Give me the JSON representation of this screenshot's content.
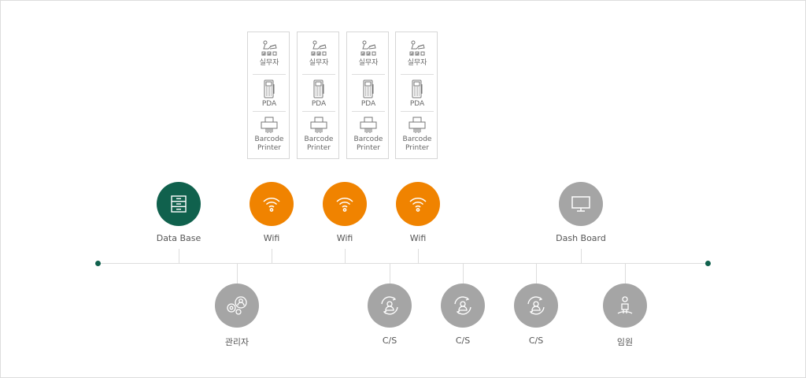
{
  "colors": {
    "green": "#10614d",
    "orange": "#f08300",
    "gray": "#a5a5a5",
    "line": "#dddddd"
  },
  "devices": {
    "worker": "실무자",
    "pda": "PDA",
    "printer_1": "Barcode",
    "printer_2": "Printer"
  },
  "top_nodes": [
    {
      "label": "Data Base",
      "icon": "server-icon",
      "color": "green"
    },
    {
      "label": "Wifi",
      "icon": "wifi-icon",
      "color": "orange"
    },
    {
      "label": "Wifi",
      "icon": "wifi-icon",
      "color": "orange"
    },
    {
      "label": "Wifi",
      "icon": "wifi-icon",
      "color": "orange"
    },
    {
      "label": "Dash Board",
      "icon": "monitor-icon",
      "color": "gray"
    }
  ],
  "bottom_nodes": [
    {
      "label": "관리자",
      "icon": "admin-gear-icon",
      "color": "gray"
    },
    {
      "label": "C/S",
      "icon": "cs-user-cycle-icon",
      "color": "gray"
    },
    {
      "label": "C/S",
      "icon": "cs-user-cycle-icon",
      "color": "gray"
    },
    {
      "label": "C/S",
      "icon": "cs-user-cycle-icon",
      "color": "gray"
    },
    {
      "label": "임원",
      "icon": "executive-icon",
      "color": "gray"
    }
  ]
}
